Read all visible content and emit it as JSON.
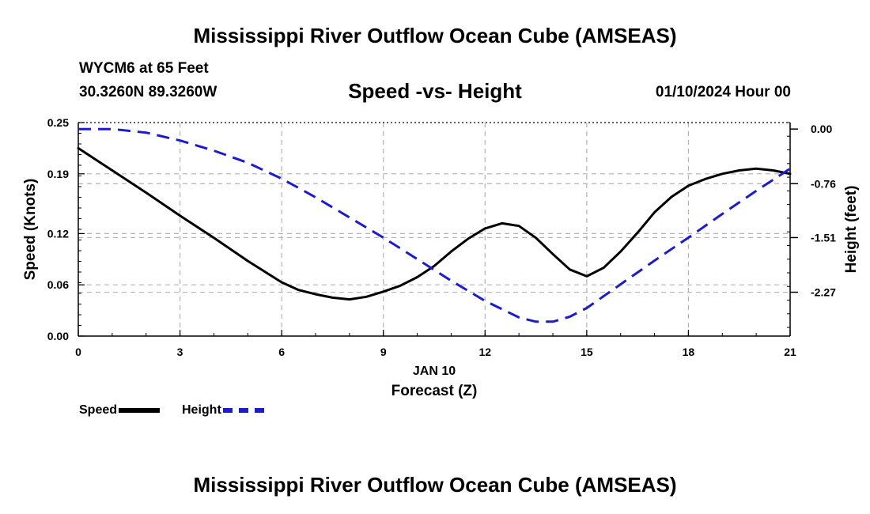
{
  "header": {
    "title": "Mississippi River Outflow Ocean Cube (AMSEAS)",
    "station": "WYCM6 at 65 Feet",
    "coordinates": "30.3260N  89.3260W",
    "subtitle": "Speed -vs- Height",
    "datetime": "01/10/2024 Hour 00"
  },
  "footer": {
    "title": "Mississippi River Outflow Ocean Cube (AMSEAS)"
  },
  "legend": {
    "speed_label": "Speed",
    "height_label": "Height"
  },
  "chart_data": {
    "type": "line",
    "title": "Speed -vs- Height",
    "xlabel": "Forecast (Z)",
    "date_label": "JAN 10",
    "ylabel": "Speed (Knots)",
    "y2label": "Height (feet)",
    "xlim": [
      0,
      21
    ],
    "ylim": [
      0,
      0.25
    ],
    "y2lim": [
      -2.88,
      0.09
    ],
    "x_ticks": [
      "0",
      "3",
      "6",
      "9",
      "12",
      "15",
      "18",
      "21"
    ],
    "y_ticks": [
      "0.00",
      "0.06",
      "0.12",
      "0.19",
      "0.25"
    ],
    "y2_ticks": [
      "0.00",
      "-0.76",
      "-1.51",
      "-2.27"
    ],
    "grid": true,
    "legend_position": "bottom-left",
    "series": [
      {
        "name": "Speed",
        "axis": "left",
        "color": "#000000",
        "style": "solid",
        "x": [
          0,
          1,
          2,
          3,
          4,
          5,
          6,
          6.5,
          7,
          7.5,
          8,
          8.5,
          9,
          9.5,
          10,
          10.5,
          11,
          11.5,
          12,
          12.5,
          13,
          13.5,
          14,
          14.5,
          15,
          15.5,
          16,
          16.5,
          17,
          17.5,
          18,
          18.5,
          19,
          19.5,
          20,
          20.5,
          21
        ],
        "values": [
          0.22,
          0.194,
          0.168,
          0.141,
          0.115,
          0.088,
          0.063,
          0.054,
          0.049,
          0.045,
          0.043,
          0.046,
          0.052,
          0.059,
          0.069,
          0.082,
          0.099,
          0.114,
          0.126,
          0.132,
          0.129,
          0.115,
          0.096,
          0.078,
          0.07,
          0.08,
          0.099,
          0.121,
          0.145,
          0.163,
          0.176,
          0.184,
          0.19,
          0.194,
          0.196,
          0.194,
          0.19
        ]
      },
      {
        "name": "Height",
        "axis": "right",
        "color": "#1c1cc8",
        "style": "dashed",
        "x": [
          0,
          1,
          2,
          3,
          4,
          5,
          6,
          7,
          8,
          9,
          10,
          11,
          12,
          13,
          13.5,
          14,
          14.5,
          15,
          16,
          17,
          18,
          19,
          20,
          21
        ],
        "values": [
          0.0,
          0.0,
          -0.05,
          -0.16,
          -0.3,
          -0.47,
          -0.69,
          -0.95,
          -1.23,
          -1.51,
          -1.81,
          -2.11,
          -2.39,
          -2.62,
          -2.68,
          -2.68,
          -2.61,
          -2.49,
          -2.16,
          -1.83,
          -1.51,
          -1.18,
          -0.86,
          -0.55
        ]
      }
    ]
  }
}
